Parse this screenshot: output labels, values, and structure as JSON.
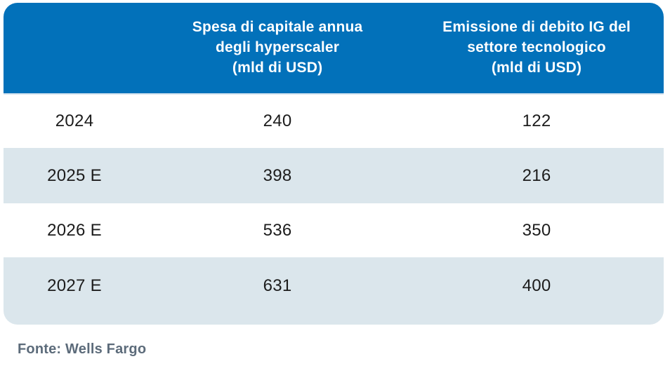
{
  "colors": {
    "header_bg": "#0271BA",
    "header_text": "#FFFFFF",
    "header_divider": "#D5E3EF",
    "row_alt_bg": "#DBE6EC",
    "row_bg": "#FFFFFF",
    "body_text": "#1C1C1C",
    "footer_text": "#5C6B7A"
  },
  "table": {
    "columns": [
      {
        "label": "Spesa di capitale annua\ndegli hyperscaler\n(mld di USD)"
      },
      {
        "label": "Emissione di debito IG del\nsettore tecnologico\n(mld di USD)"
      }
    ],
    "rows": [
      {
        "year": "2024",
        "capex": "240",
        "debt": "122"
      },
      {
        "year": "2025 E",
        "capex": "398",
        "debt": "216"
      },
      {
        "year": "2026 E",
        "capex": "536",
        "debt": "350"
      },
      {
        "year": "2027 E",
        "capex": "631",
        "debt": "400"
      }
    ]
  },
  "footer": {
    "source_label": "Fonte: Wells Fargo"
  },
  "chart_data": {
    "type": "table",
    "categories": [
      "2024",
      "2025 E",
      "2026 E",
      "2027 E"
    ],
    "series": [
      {
        "name": "Spesa di capitale annua degli hyperscaler (mld di USD)",
        "values": [
          240,
          398,
          536,
          631
        ]
      },
      {
        "name": "Emissione di debito IG del settore tecnologico (mld di USD)",
        "values": [
          122,
          216,
          350,
          400
        ]
      }
    ],
    "title": "",
    "source": "Fonte: Wells Fargo",
    "layout": "rows shaded alternately white / light blue, blue header band with white bold labels"
  }
}
